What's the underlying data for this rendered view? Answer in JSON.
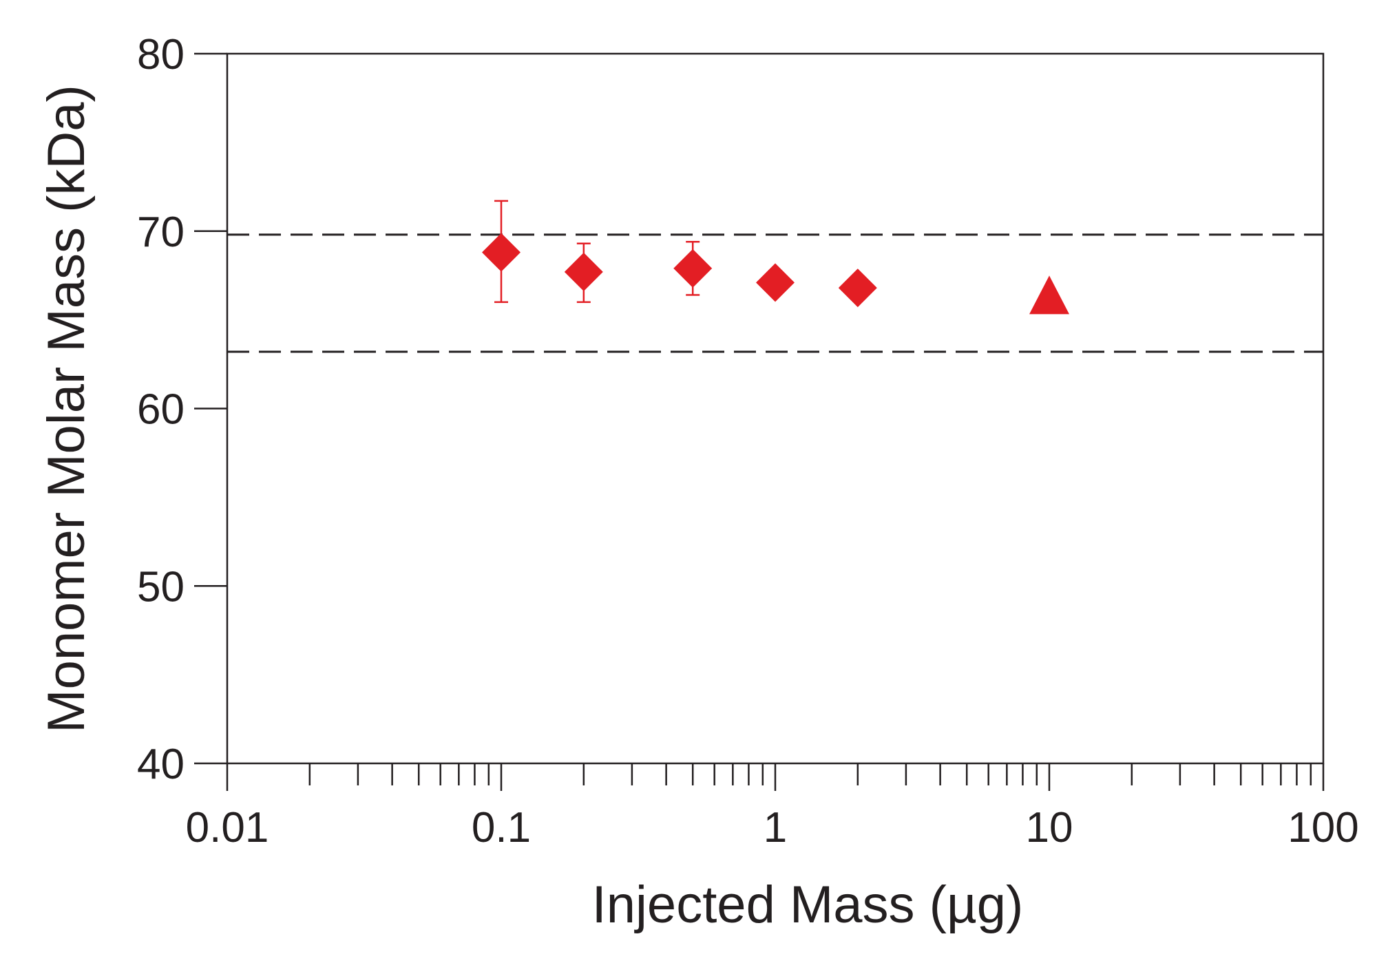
{
  "chart_data": {
    "type": "scatter",
    "title": "",
    "xlabel": "Injected Mass (µg)",
    "ylabel": "Monomer Molar Mass (kDa)",
    "xscale": "log",
    "xlim": [
      0.01,
      100
    ],
    "ylim": [
      40,
      80
    ],
    "x_tick_labels": [
      "0.01",
      "0.1",
      "1",
      "10",
      "100"
    ],
    "x_tick_values": [
      0.01,
      0.1,
      1,
      10,
      100
    ],
    "y_tick_labels": [
      "40",
      "50",
      "60",
      "70",
      "80"
    ],
    "y_tick_values": [
      40,
      50,
      60,
      70,
      80
    ],
    "grid": false,
    "reference_lines": [
      {
        "y": 69.8,
        "style": "dashed"
      },
      {
        "y": 63.2,
        "style": "dashed"
      }
    ],
    "series": [
      {
        "marker": "diamond",
        "color": "#e31e24",
        "points": [
          {
            "x": 0.1,
            "y": 68.8,
            "yerr_low": 66.0,
            "yerr_high": 71.7
          },
          {
            "x": 0.2,
            "y": 67.7,
            "yerr_low": 66.0,
            "yerr_high": 69.3
          },
          {
            "x": 0.5,
            "y": 67.9,
            "yerr_low": 66.4,
            "yerr_high": 69.4
          },
          {
            "x": 1.0,
            "y": 67.1
          },
          {
            "x": 2.0,
            "y": 66.8
          }
        ]
      },
      {
        "marker": "triangle",
        "color": "#e31e24",
        "points": [
          {
            "x": 10,
            "y": 66.3
          }
        ]
      }
    ]
  }
}
